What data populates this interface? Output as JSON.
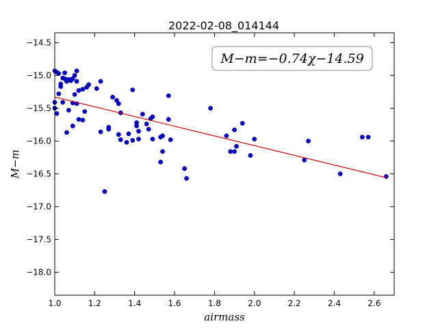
{
  "chart_data": {
    "type": "scatter",
    "title": "2022-02-08_014144",
    "xlabel": "airmass",
    "ylabel": "M−m",
    "annotation": "M−m=−0.74χ−14.59",
    "xlim": [
      1.0,
      2.7
    ],
    "ylim": [
      -18.35,
      -14.35
    ],
    "y_inverted": true,
    "grid": false,
    "xticks": [
      1.0,
      1.2,
      1.4,
      1.6,
      1.8,
      2.0,
      2.2,
      2.4,
      2.6
    ],
    "xtick_labels": [
      "1.0",
      "1.2",
      "1.4",
      "1.6",
      "1.8",
      "2.0",
      "2.2",
      "2.4",
      "2.6"
    ],
    "yticks": [
      -14.5,
      -15.0,
      -15.5,
      -16.0,
      -16.5,
      -17.0,
      -17.5,
      -18.0
    ],
    "ytick_labels": [
      "−14.5",
      "−15.0",
      "−15.5",
      "−16.0",
      "−16.5",
      "−17.0",
      "−17.5",
      "−18.0"
    ],
    "point_color": "#0000cc",
    "fit_color": "#cc0000",
    "fit": {
      "slope": -0.74,
      "intercept": -14.59,
      "x_range": [
        1.0,
        2.66
      ]
    },
    "points": [
      [
        1.0,
        -14.93
      ],
      [
        1.01,
        -14.95
      ],
      [
        1.02,
        -14.97
      ],
      [
        1.04,
        -15.04
      ],
      [
        1.05,
        -15.05
      ],
      [
        1.05,
        -14.96
      ],
      [
        1.06,
        -15.09
      ],
      [
        1.07,
        -15.06
      ],
      [
        1.08,
        -15.08
      ],
      [
        1.09,
        -15.05
      ],
      [
        1.1,
        -15.0
      ],
      [
        1.11,
        -14.93
      ],
      [
        1.11,
        -15.09
      ],
      [
        1.12,
        -15.23
      ],
      [
        1.14,
        -15.21
      ],
      [
        1.16,
        -15.18
      ],
      [
        1.17,
        -15.14
      ],
      [
        1.21,
        -15.2
      ],
      [
        1.23,
        -15.09
      ],
      [
        1.03,
        -15.13
      ],
      [
        1.03,
        -15.17
      ],
      [
        1.02,
        -15.28
      ],
      [
        1.04,
        -15.41
      ],
      [
        1.0,
        -15.41
      ],
      [
        1.0,
        -15.5
      ],
      [
        1.01,
        -15.58
      ],
      [
        1.07,
        -15.53
      ],
      [
        1.09,
        -15.42
      ],
      [
        1.1,
        -15.29
      ],
      [
        1.11,
        -15.43
      ],
      [
        1.12,
        -15.67
      ],
      [
        1.14,
        -15.68
      ],
      [
        1.15,
        -15.55
      ],
      [
        1.09,
        -15.77
      ],
      [
        1.06,
        -15.87
      ],
      [
        1.23,
        -15.86
      ],
      [
        1.27,
        -15.82
      ],
      [
        1.27,
        -15.79
      ],
      [
        1.29,
        -15.33
      ],
      [
        1.31,
        -15.38
      ],
      [
        1.32,
        -15.43
      ],
      [
        1.33,
        -15.57
      ],
      [
        1.32,
        -15.9
      ],
      [
        1.33,
        -15.98
      ],
      [
        1.36,
        -16.02
      ],
      [
        1.37,
        -15.89
      ],
      [
        1.39,
        -15.99
      ],
      [
        1.39,
        -15.22
      ],
      [
        1.41,
        -15.72
      ],
      [
        1.41,
        -15.77
      ],
      [
        1.42,
        -15.85
      ],
      [
        1.42,
        -15.97
      ],
      [
        1.44,
        -15.59
      ],
      [
        1.46,
        -15.74
      ],
      [
        1.47,
        -15.82
      ],
      [
        1.48,
        -15.66
      ],
      [
        1.49,
        -15.63
      ],
      [
        1.49,
        -15.97
      ],
      [
        1.53,
        -15.94
      ],
      [
        1.54,
        -15.92
      ],
      [
        1.54,
        -16.16
      ],
      [
        1.53,
        -16.32
      ],
      [
        1.57,
        -15.31
      ],
      [
        1.57,
        -15.67
      ],
      [
        1.58,
        -15.98
      ],
      [
        1.65,
        -16.42
      ],
      [
        1.66,
        -16.57
      ],
      [
        1.25,
        -16.77
      ],
      [
        1.78,
        -15.5
      ],
      [
        1.86,
        -15.92
      ],
      [
        1.88,
        -16.16
      ],
      [
        1.9,
        -15.83
      ],
      [
        1.9,
        -16.16
      ],
      [
        1.91,
        -16.08
      ],
      [
        1.94,
        -15.73
      ],
      [
        1.98,
        -16.22
      ],
      [
        2.0,
        -15.97
      ],
      [
        2.25,
        -16.29
      ],
      [
        2.27,
        -16.0
      ],
      [
        2.43,
        -16.5
      ],
      [
        2.54,
        -15.94
      ],
      [
        2.57,
        -15.94
      ],
      [
        2.66,
        -16.54
      ]
    ]
  }
}
